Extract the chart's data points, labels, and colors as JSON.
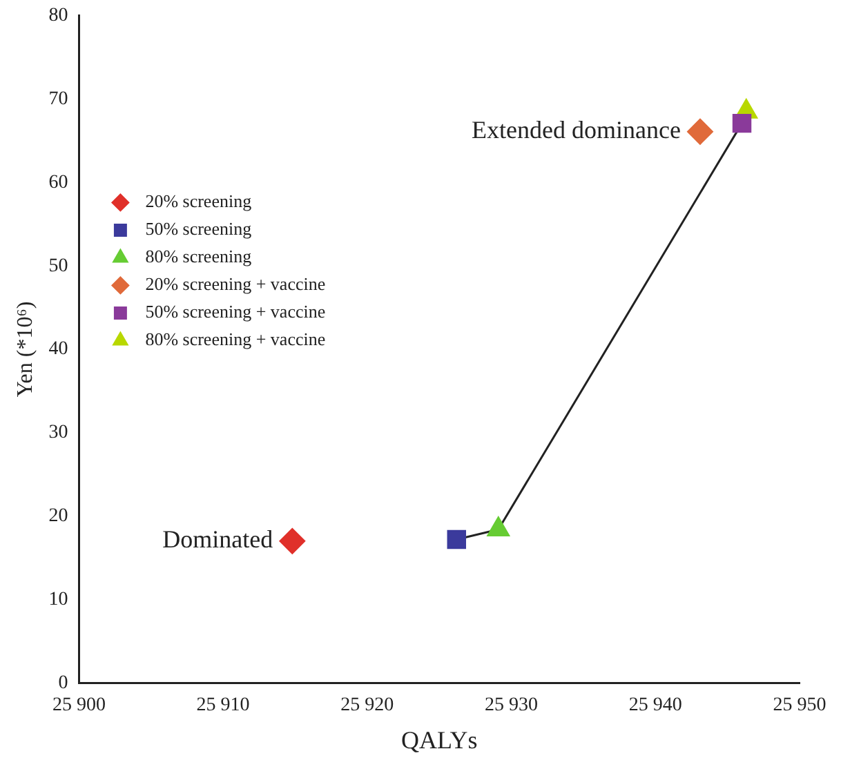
{
  "chart_data": {
    "type": "scatter",
    "xlabel": "QALYs",
    "ylabel": "Yen (*10⁶)",
    "xlim": [
      25900,
      25950
    ],
    "xticks": [
      {
        "value": 25900,
        "label": "25 900"
      },
      {
        "value": 25910,
        "label": "25 910"
      },
      {
        "value": 25920,
        "label": "25 920"
      },
      {
        "value": 25930,
        "label": "25 930"
      },
      {
        "value": 25940,
        "label": "25 940"
      },
      {
        "value": 25950,
        "label": "25 950"
      }
    ],
    "ylim": [
      0,
      80
    ],
    "yticks": [
      0,
      10,
      20,
      30,
      40,
      50,
      60,
      70,
      80
    ],
    "grid": false,
    "legend": "left",
    "series": [
      {
        "type": "line",
        "color": "#222222",
        "x": [
          25926.2,
          25929.1,
          25946.0
        ],
        "values": [
          17.2,
          18.4,
          67.1
        ],
        "marker": "none",
        "line_style": "solid"
      },
      {
        "name": "20% screening",
        "color": "#e0302a",
        "x": [
          25914.8
        ],
        "values": [
          17.0
        ],
        "marker": "diamond"
      },
      {
        "name": "50% screening",
        "color": "#3b3a9c",
        "x": [
          25926.2
        ],
        "values": [
          17.2
        ],
        "marker": "square"
      },
      {
        "name": "80% screening",
        "color": "#66cc33",
        "x": [
          25929.1
        ],
        "values": [
          18.4
        ],
        "marker": "triangle"
      },
      {
        "name": "20% screening + vaccine",
        "color": "#e06a3a",
        "x": [
          25943.1
        ],
        "values": [
          66.1
        ],
        "marker": "diamond"
      },
      {
        "name": "50% screening + vaccine",
        "color": "#8a3a9a",
        "x": [
          25946.0
        ],
        "values": [
          67.1
        ],
        "marker": "square"
      },
      {
        "name": "80% screening + vaccine",
        "color": "#b8d800",
        "x": [
          25946.3
        ],
        "values": [
          68.5
        ],
        "marker": "triangle"
      }
    ],
    "annotations": [
      {
        "text": "Extended dominance",
        "x": 25943.1,
        "y": 66.1
      },
      {
        "text": "Dominated",
        "x": 25914.8,
        "y": 17.0
      }
    ]
  }
}
